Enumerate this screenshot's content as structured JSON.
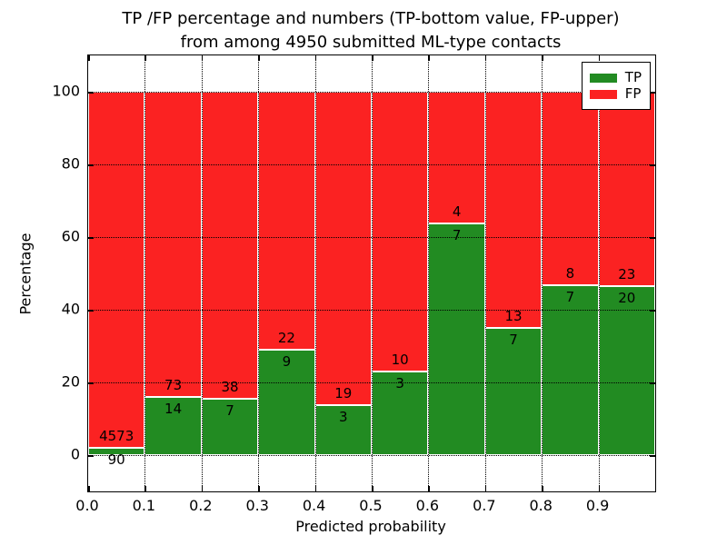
{
  "figure": {
    "title_line1": "TP /FP percentage and numbers (TP-bottom value, FP-upper)",
    "title_line2": "from among 4950 submitted ML-type contacts"
  },
  "chart_data": {
    "type": "bar",
    "stacked": true,
    "title": "TP /FP percentage and numbers (TP-bottom value, FP-upper)\nfrom among 4950 submitted ML-type contacts",
    "xlabel": "Predicted probability",
    "ylabel": "Percentage",
    "xlim": [
      0.0,
      1.0
    ],
    "ylim": [
      -10,
      110
    ],
    "x_tick_values": [
      0.0,
      0.1,
      0.2,
      0.3,
      0.4,
      0.5,
      0.6,
      0.7,
      0.8,
      0.9
    ],
    "x_tick_labels": [
      "0.0",
      "0.1",
      "0.2",
      "0.3",
      "0.4",
      "0.5",
      "0.6",
      "0.7",
      "0.8",
      "0.9"
    ],
    "y_tick_values": [
      0,
      20,
      40,
      60,
      80,
      100
    ],
    "y_tick_labels": [
      "0",
      "20",
      "40",
      "60",
      "80",
      "100"
    ],
    "grid": "dotted",
    "grid_x_values": [
      0.1,
      0.2,
      0.3,
      0.4,
      0.5,
      0.6,
      0.7,
      0.8,
      0.9
    ],
    "bin_width": 0.1,
    "total_contacts": 4950,
    "bins": [
      {
        "range": [
          0.0,
          0.1
        ],
        "tp": 90,
        "fp": 4573,
        "tp_percent": 1.93
      },
      {
        "range": [
          0.1,
          0.2
        ],
        "tp": 14,
        "fp": 73,
        "tp_percent": 16.09
      },
      {
        "range": [
          0.2,
          0.3
        ],
        "tp": 7,
        "fp": 38,
        "tp_percent": 15.56
      },
      {
        "range": [
          0.3,
          0.4
        ],
        "tp": 9,
        "fp": 22,
        "tp_percent": 29.03
      },
      {
        "range": [
          0.4,
          0.5
        ],
        "tp": 3,
        "fp": 19,
        "tp_percent": 13.64
      },
      {
        "range": [
          0.5,
          0.6
        ],
        "tp": 3,
        "fp": 10,
        "tp_percent": 23.08
      },
      {
        "range": [
          0.6,
          0.7
        ],
        "tp": 7,
        "fp": 4,
        "tp_percent": 63.64
      },
      {
        "range": [
          0.7,
          0.8
        ],
        "tp": 7,
        "fp": 13,
        "tp_percent": 35.0
      },
      {
        "range": [
          0.8,
          0.9
        ],
        "tp": 7,
        "fp": 8,
        "tp_percent": 46.67
      },
      {
        "range": [
          0.9,
          1.0
        ],
        "tp": 20,
        "fp": 23,
        "tp_percent": 46.51
      }
    ],
    "series": [
      {
        "name": "TP",
        "color": "#228b22",
        "counts": [
          90,
          14,
          7,
          9,
          3,
          3,
          7,
          7,
          7,
          20
        ]
      },
      {
        "name": "FP",
        "color": "#fb2222",
        "counts": [
          4573,
          73,
          38,
          22,
          19,
          10,
          4,
          13,
          8,
          23
        ]
      }
    ],
    "legend": {
      "position": "upper right",
      "entries": [
        {
          "label": "TP",
          "color": "#228b22"
        },
        {
          "label": "FP",
          "color": "#fb2222"
        }
      ]
    }
  },
  "colors": {
    "tp_green": "#228b22",
    "fp_red": "#fb2222",
    "background": "#ffffff",
    "text": "#000000",
    "bar_edge": "#ffffff"
  }
}
